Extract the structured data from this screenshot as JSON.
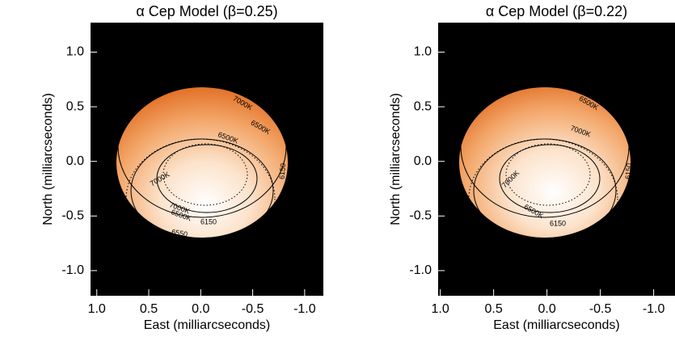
{
  "chart_data": [
    {
      "type": "image",
      "title": "α Cep Model (β=0.25)",
      "x_label": "East (milliarcseconds)",
      "y_label": "North (milliarcseconds)",
      "xlim": [
        1.06,
        -1.18
      ],
      "ylim": [
        -1.23,
        1.27
      ],
      "xticks": [
        1.0,
        0.5,
        0.0,
        -0.5,
        -1.0
      ],
      "yticks": [
        1.0,
        0.5,
        0.0,
        -0.5,
        -1.0
      ],
      "xtick_labels": [
        "1.0",
        "0.5",
        "0.0",
        "-0.5",
        "-1.0"
      ],
      "ytick_labels": [
        "1.0",
        "0.5",
        "0.0",
        "-0.5",
        "-1.0"
      ],
      "contour_labels": [
        "7000K",
        "6500K",
        "6500K",
        "7000K",
        "7000K",
        "6500K",
        "6150",
        "6150",
        "6550"
      ]
    },
    {
      "type": "image",
      "title": "α Cep Model (β=0.22)",
      "x_label": "East (milliarcseconds)",
      "y_label": "North (milliarcseconds)",
      "xlim": [
        1.02,
        -1.2
      ],
      "ylim": [
        -1.23,
        1.27
      ],
      "xticks": [
        1.0,
        0.5,
        0.0,
        -0.5,
        -1.0
      ],
      "yticks": [
        1.0,
        0.5,
        0.0,
        -0.5,
        -1.0
      ],
      "xtick_labels": [
        "1.0",
        "0.5",
        "0.0",
        "-0.5",
        "-1.0"
      ],
      "ytick_labels": [
        "1.0",
        "0.5",
        "0.0",
        "-0.5",
        "-1.0"
      ],
      "contour_labels": [
        "7000K",
        "6500K",
        "7000K",
        "6150",
        "7000K",
        "6500K",
        "6150",
        "6500K"
      ]
    }
  ]
}
